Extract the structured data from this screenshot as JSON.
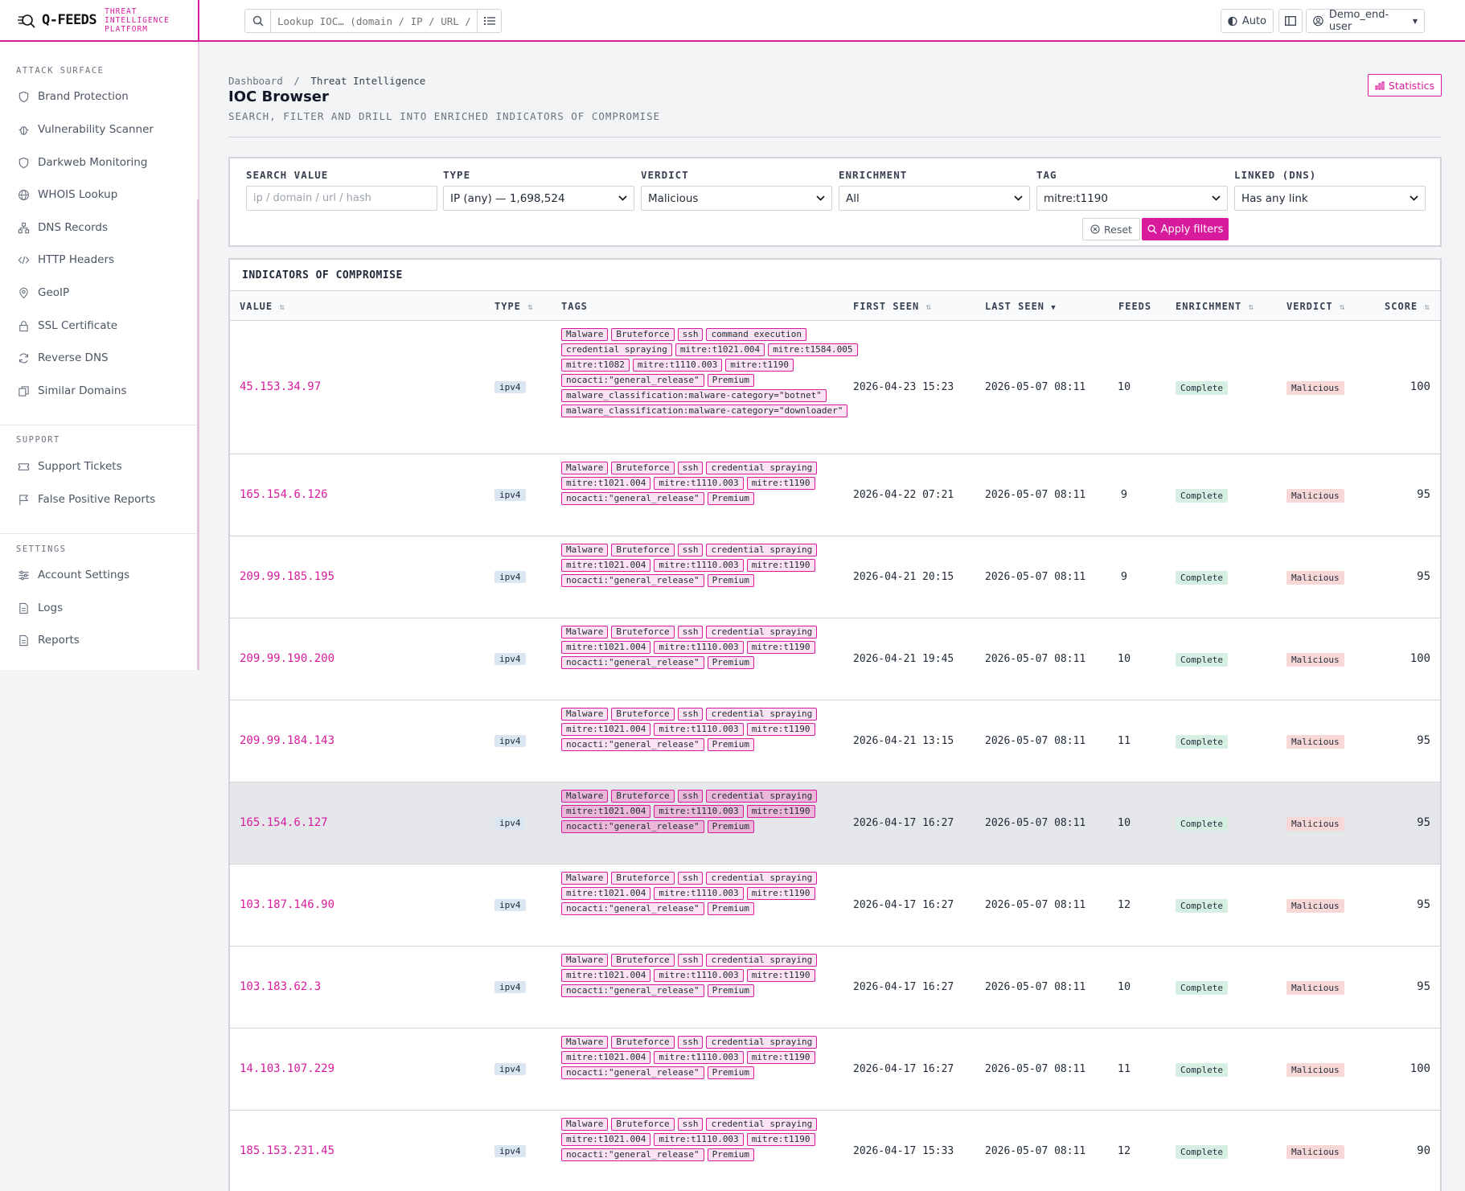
{
  "brand": {
    "name": "Q-FEEDS",
    "tagline_lines": [
      "THREAT",
      "INTELLIGENCE",
      "PLATFORM"
    ]
  },
  "header": {
    "search_placeholder": "Lookup IOC… (domain / IP / URL / hash)",
    "theme_label": "Auto",
    "user_label": "Demo_end-user"
  },
  "sidebar": {
    "groups": [
      {
        "label": "ATTACK SURFACE",
        "items": [
          {
            "label": "Brand Protection",
            "icon": "shield-icon"
          },
          {
            "label": "Vulnerability Scanner",
            "icon": "bug-icon"
          },
          {
            "label": "Darkweb Monitoring",
            "icon": "shield-icon"
          },
          {
            "label": "WHOIS Lookup",
            "icon": "globe-icon"
          },
          {
            "label": "DNS Records",
            "icon": "network-icon"
          },
          {
            "label": "HTTP Headers",
            "icon": "code-icon"
          },
          {
            "label": "GeoIP",
            "icon": "map-pin-icon"
          },
          {
            "label": "SSL Certificate",
            "icon": "lock-icon"
          },
          {
            "label": "Reverse DNS",
            "icon": "refresh-icon"
          },
          {
            "label": "Similar Domains",
            "icon": "copy-icon"
          }
        ]
      },
      {
        "label": "SUPPORT",
        "items": [
          {
            "label": "Support Tickets",
            "icon": "ticket-icon"
          },
          {
            "label": "False Positive Reports",
            "icon": "flag-icon"
          }
        ]
      },
      {
        "label": "SETTINGS",
        "items": [
          {
            "label": "Account Settings",
            "icon": "sliders-icon"
          },
          {
            "label": "Logs",
            "icon": "file-icon"
          },
          {
            "label": "Reports",
            "icon": "file-icon"
          }
        ]
      }
    ]
  },
  "page": {
    "breadcrumb_root": "Dashboard",
    "breadcrumb_sep": "/",
    "breadcrumb_current": "Threat Intelligence",
    "title": "IOC Browser",
    "subtitle": "SEARCH, FILTER AND DRILL INTO ENRICHED INDICATORS OF COMPROMISE",
    "statistics_label": "Statistics"
  },
  "filters": {
    "search": {
      "label": "SEARCH VALUE",
      "placeholder": "ip / domain / url / hash"
    },
    "type": {
      "label": "TYPE",
      "value": "IP (any) — 1,698,524"
    },
    "verdict": {
      "label": "VERDICT",
      "value": "Malicious"
    },
    "enrichment": {
      "label": "ENRICHMENT",
      "value": "All"
    },
    "tag": {
      "label": "TAG",
      "value": "mitre:t1190"
    },
    "linked": {
      "label": "LINKED (DNS)",
      "value": "Has any link"
    },
    "reset_label": "Reset",
    "apply_label": "Apply filters"
  },
  "table": {
    "title": "INDICATORS OF COMPROMISE",
    "columns": {
      "value": "VALUE",
      "type": "TYPE",
      "tags": "TAGS",
      "first_seen": "FIRST SEEN",
      "last_seen": "LAST SEEN",
      "feeds": "FEEDS",
      "enrichment": "ENRICHMENT",
      "verdict": "VERDICT",
      "score": "SCORE"
    },
    "rows": [
      {
        "value": "45.153.34.97",
        "type": "ipv4",
        "tags": [
          "Malware",
          "Bruteforce",
          "ssh",
          "command execution",
          "credential spraying",
          "mitre:t1021.004",
          "mitre:t1584.005",
          "mitre:t1082",
          "mitre:t1110.003",
          "mitre:t1190",
          "nocacti:\"general_release\"",
          "Premium",
          "malware_classification:malware-category=\"botnet\"",
          "malware_classification:malware-category=\"downloader\""
        ],
        "first_seen": "2026-04-23 15:23",
        "last_seen": "2026-05-07 08:11",
        "feeds": "10",
        "enrichment": "Complete",
        "verdict": "Malicious",
        "score": "100"
      },
      {
        "value": "165.154.6.126",
        "type": "ipv4",
        "tags": [
          "Malware",
          "Bruteforce",
          "ssh",
          "credential spraying",
          "mitre:t1021.004",
          "mitre:t1110.003",
          "mitre:t1190",
          "nocacti:\"general_release\"",
          "Premium"
        ],
        "first_seen": "2026-04-22 07:21",
        "last_seen": "2026-05-07 08:11",
        "feeds": "9",
        "enrichment": "Complete",
        "verdict": "Malicious",
        "score": "95"
      },
      {
        "value": "209.99.185.195",
        "type": "ipv4",
        "tags": [
          "Malware",
          "Bruteforce",
          "ssh",
          "credential spraying",
          "mitre:t1021.004",
          "mitre:t1110.003",
          "mitre:t1190",
          "nocacti:\"general_release\"",
          "Premium"
        ],
        "first_seen": "2026-04-21 20:15",
        "last_seen": "2026-05-07 08:11",
        "feeds": "9",
        "enrichment": "Complete",
        "verdict": "Malicious",
        "score": "95"
      },
      {
        "value": "209.99.190.200",
        "type": "ipv4",
        "tags": [
          "Malware",
          "Bruteforce",
          "ssh",
          "credential spraying",
          "mitre:t1021.004",
          "mitre:t1110.003",
          "mitre:t1190",
          "nocacti:\"general_release\"",
          "Premium"
        ],
        "first_seen": "2026-04-21 19:45",
        "last_seen": "2026-05-07 08:11",
        "feeds": "10",
        "enrichment": "Complete",
        "verdict": "Malicious",
        "score": "100"
      },
      {
        "value": "209.99.184.143",
        "type": "ipv4",
        "tags": [
          "Malware",
          "Bruteforce",
          "ssh",
          "credential spraying",
          "mitre:t1021.004",
          "mitre:t1110.003",
          "mitre:t1190",
          "nocacti:\"general_release\"",
          "Premium"
        ],
        "first_seen": "2026-04-21 13:15",
        "last_seen": "2026-05-07 08:11",
        "feeds": "11",
        "enrichment": "Complete",
        "verdict": "Malicious",
        "score": "95"
      },
      {
        "value": "165.154.6.127",
        "type": "ipv4",
        "tags": [
          "Malware",
          "Bruteforce",
          "ssh",
          "credential spraying",
          "mitre:t1021.004",
          "mitre:t1110.003",
          "mitre:t1190",
          "nocacti:\"general_release\"",
          "Premium"
        ],
        "first_seen": "2026-04-17 16:27",
        "last_seen": "2026-05-07 08:11",
        "feeds": "10",
        "enrichment": "Complete",
        "verdict": "Malicious",
        "score": "95",
        "hovered": true
      },
      {
        "value": "103.187.146.90",
        "type": "ipv4",
        "tags": [
          "Malware",
          "Bruteforce",
          "ssh",
          "credential spraying",
          "mitre:t1021.004",
          "mitre:t1110.003",
          "mitre:t1190",
          "nocacti:\"general_release\"",
          "Premium"
        ],
        "first_seen": "2026-04-17 16:27",
        "last_seen": "2026-05-07 08:11",
        "feeds": "12",
        "enrichment": "Complete",
        "verdict": "Malicious",
        "score": "95"
      },
      {
        "value": "103.183.62.3",
        "type": "ipv4",
        "tags": [
          "Malware",
          "Bruteforce",
          "ssh",
          "credential spraying",
          "mitre:t1021.004",
          "mitre:t1110.003",
          "mitre:t1190",
          "nocacti:\"general_release\"",
          "Premium"
        ],
        "first_seen": "2026-04-17 16:27",
        "last_seen": "2026-05-07 08:11",
        "feeds": "10",
        "enrichment": "Complete",
        "verdict": "Malicious",
        "score": "95"
      },
      {
        "value": "14.103.107.229",
        "type": "ipv4",
        "tags": [
          "Malware",
          "Bruteforce",
          "ssh",
          "credential spraying",
          "mitre:t1021.004",
          "mitre:t1110.003",
          "mitre:t1190",
          "nocacti:\"general_release\"",
          "Premium"
        ],
        "first_seen": "2026-04-17 16:27",
        "last_seen": "2026-05-07 08:11",
        "feeds": "11",
        "enrichment": "Complete",
        "verdict": "Malicious",
        "score": "100"
      },
      {
        "value": "185.153.231.45",
        "type": "ipv4",
        "tags": [
          "Malware",
          "Bruteforce",
          "ssh",
          "credential spraying",
          "mitre:t1021.004",
          "mitre:t1110.003",
          "mitre:t1190",
          "nocacti:\"general_release\"",
          "Premium"
        ],
        "first_seen": "2026-04-17 15:33",
        "last_seen": "2026-05-07 08:11",
        "feeds": "12",
        "enrichment": "Complete",
        "verdict": "Malicious",
        "score": "90"
      }
    ]
  },
  "colors": {
    "accent": "#d81b9c",
    "tag_bg": "#fbe3f3",
    "enrichment_bg": "#d6efe3",
    "verdict_bg": "#f8d7d7",
    "type_bg": "#dbe6f3"
  }
}
